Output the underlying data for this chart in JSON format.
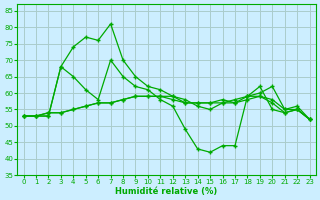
{
  "xlabel": "Humidité relative (%)",
  "bg_color": "#cceeff",
  "grid_color": "#aacccc",
  "line_color": "#00aa00",
  "ylim": [
    35,
    87
  ],
  "xlim": [
    -0.5,
    23.5
  ],
  "yticks": [
    35,
    40,
    45,
    50,
    55,
    60,
    65,
    70,
    75,
    80,
    85
  ],
  "xticks": [
    0,
    1,
    2,
    3,
    4,
    5,
    6,
    7,
    8,
    9,
    10,
    11,
    12,
    13,
    14,
    15,
    16,
    17,
    18,
    19,
    20,
    21,
    22,
    23
  ],
  "series": [
    [
      53,
      53,
      53,
      68,
      74,
      77,
      76,
      81,
      70,
      65,
      62,
      61,
      59,
      58,
      56,
      55,
      57,
      58,
      59,
      60,
      62,
      55,
      56,
      52
    ],
    [
      53,
      53,
      53,
      68,
      65,
      61,
      58,
      70,
      65,
      62,
      61,
      58,
      56,
      49,
      43,
      42,
      44,
      44,
      59,
      62,
      55,
      54,
      55,
      52
    ],
    [
      53,
      53,
      54,
      54,
      55,
      56,
      57,
      57,
      58,
      59,
      59,
      59,
      58,
      57,
      57,
      57,
      57,
      57,
      58,
      59,
      57,
      54,
      55,
      52
    ],
    [
      53,
      53,
      54,
      54,
      55,
      56,
      57,
      57,
      58,
      59,
      59,
      59,
      59,
      57,
      57,
      57,
      58,
      57,
      59,
      59,
      58,
      55,
      55,
      52
    ]
  ]
}
